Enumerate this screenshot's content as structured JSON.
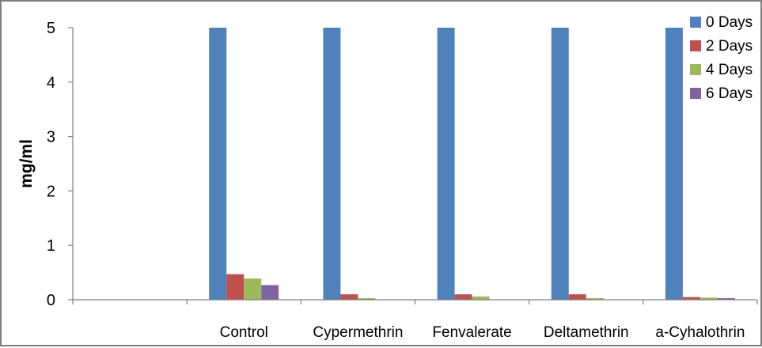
{
  "chart_data": {
    "type": "bar",
    "title": "",
    "xlabel": "",
    "ylabel": "mg/ml",
    "ylim": [
      0,
      5
    ],
    "yticks": [
      "0",
      "1",
      "2",
      "3",
      "4",
      "5"
    ],
    "categories": [
      "",
      "Control",
      "Cypermethrin",
      "Fenvalerate",
      "Deltamethrin",
      "a-Cyhalothrin"
    ],
    "series": [
      {
        "name": "0 Days",
        "color": "#4f81bd",
        "values": [
          0,
          5,
          5,
          5,
          5,
          5
        ]
      },
      {
        "name": "2 Days",
        "color": "#c0504d",
        "values": [
          0,
          0.47,
          0.1,
          0.1,
          0.1,
          0.05
        ]
      },
      {
        "name": "4 Days",
        "color": "#9bbb59",
        "values": [
          0,
          0.39,
          0.03,
          0.06,
          0.03,
          0.04
        ]
      },
      {
        "name": "6 Days",
        "color": "#8064a2",
        "values": [
          0,
          0.27,
          0.0,
          0.0,
          0.0,
          0.03
        ]
      }
    ],
    "grid": false,
    "legend_position": "top-right"
  }
}
